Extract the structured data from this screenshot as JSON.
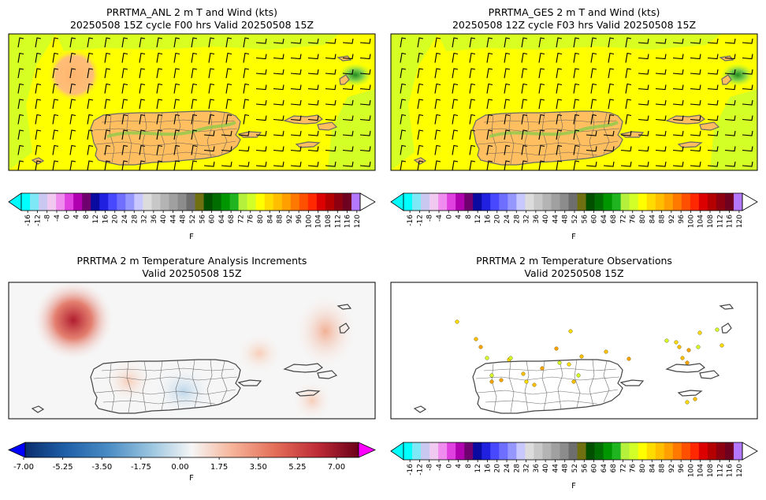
{
  "panels": [
    {
      "title_line1": "PRRTMA_ANL 2 m T and Wind (kts)",
      "title_line2": "20250508 15Z cycle F00 hrs Valid 20250508 15Z",
      "colorbar": "temp",
      "colorbar_unit": "F",
      "field": "analysis"
    },
    {
      "title_line1": "PRRTMA_GES 2 m T and Wind (kts)",
      "title_line2": "20250508 12Z cycle F03 hrs Valid 20250508 15Z",
      "colorbar": "temp",
      "colorbar_unit": "F",
      "field": "guess"
    },
    {
      "title_line1": "PRRTMA 2 m Temperature Analysis Increments",
      "title_line2": "Valid 20250508 15Z",
      "colorbar": "increment",
      "colorbar_unit": "F",
      "field": "increments"
    },
    {
      "title_line1": "PRRTMA 2 m Temperature Observations",
      "title_line2": "Valid 20250508 15Z",
      "colorbar": "temp",
      "colorbar_unit": "F",
      "field": "observations"
    }
  ],
  "temp_colorbar": {
    "ticks": [
      "-16",
      "-12",
      "-8",
      "-4",
      "0",
      "4",
      "8",
      "12",
      "16",
      "20",
      "24",
      "28",
      "32",
      "36",
      "40",
      "44",
      "48",
      "52",
      "56",
      "60",
      "64",
      "68",
      "72",
      "76",
      "80",
      "84",
      "88",
      "92",
      "96",
      "100",
      "104",
      "108",
      "112",
      "116",
      "120"
    ],
    "colors": [
      "#00ffff",
      "#7fe8f6",
      "#c8c8f0",
      "#f0c8f0",
      "#f08cf0",
      "#e040e0",
      "#b000b0",
      "#700070",
      "#0a0aa0",
      "#2020e0",
      "#4848ff",
      "#6e6eff",
      "#9696ff",
      "#c8c8ff",
      "#dcdcdc",
      "#c8c8c8",
      "#b4b4b4",
      "#a0a0a0",
      "#8c8c8c",
      "#6e6e6e",
      "#707010",
      "#005000",
      "#006e00",
      "#009600",
      "#20b420",
      "#b4f03c",
      "#d2ff28",
      "#ffff00",
      "#ffdc00",
      "#ffbe00",
      "#ffa000",
      "#ff7800",
      "#ff5000",
      "#ff2800",
      "#dc0000",
      "#b40000",
      "#8c0010",
      "#6e0020",
      "#b478ff"
    ],
    "over_color": "#ffffff",
    "under_color": "#00ffff"
  },
  "increment_colorbar": {
    "ticks": [
      "-7.00",
      "-5.25",
      "-3.50",
      "-1.75",
      "0.00",
      "1.75",
      "3.50",
      "5.25",
      "7.00"
    ],
    "under_color": "#0000ff",
    "over_color": "#ff00ff"
  },
  "map_colors": {
    "field_yellow": "#ffff00",
    "field_greenyellow": "#d2ff28",
    "field_orange": "#ffbe60",
    "coast": "#444444",
    "obs_colors": [
      "#ffdc00",
      "#ffbe00",
      "#ffa000",
      "#d2ff28"
    ]
  }
}
